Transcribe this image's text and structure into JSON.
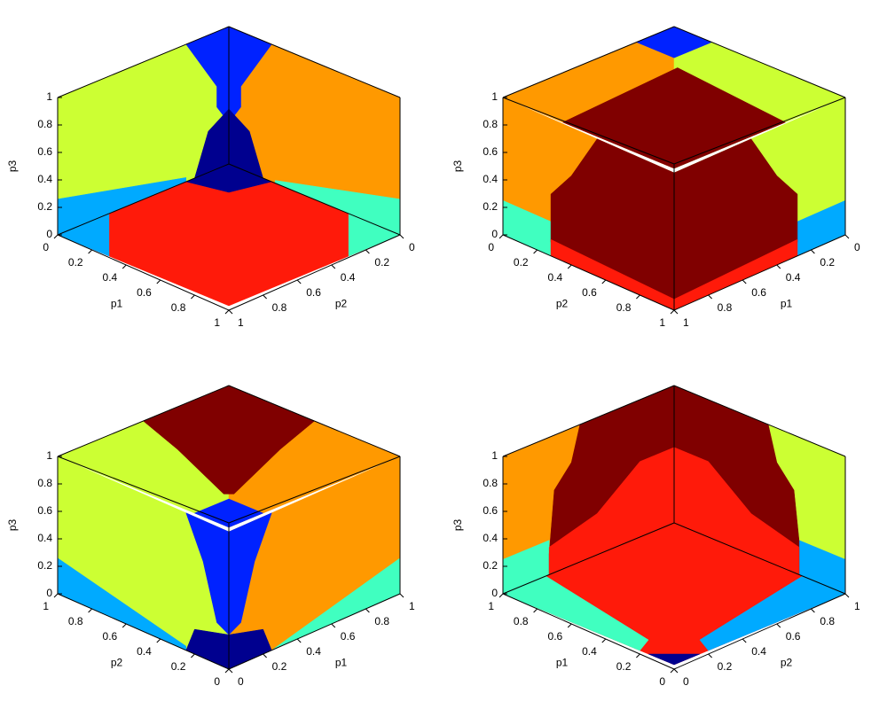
{
  "chart_data": [
    {
      "type": "cube",
      "view": "inside",
      "vertical_axis": {
        "label": "p3",
        "lim": [
          0,
          1
        ],
        "ticks": [
          0,
          0.2,
          0.4,
          0.6,
          0.8,
          1
        ]
      },
      "left_axis": {
        "label": "p1",
        "lim": [
          0,
          1
        ],
        "ticks": [
          0,
          0.2,
          0.4,
          0.6,
          0.8,
          1
        ]
      },
      "right_axis": {
        "label": "p2",
        "lim": [
          0,
          1
        ],
        "ticks": [
          0,
          0.2,
          0.4,
          0.6,
          0.8,
          1
        ]
      }
    },
    {
      "type": "cube",
      "view": "outside",
      "vertical_axis": {
        "label": "p3",
        "lim": [
          0,
          1
        ],
        "ticks": [
          0,
          0.2,
          0.4,
          0.6,
          0.8,
          1
        ]
      },
      "left_axis": {
        "label": "p2",
        "lim": [
          0,
          1
        ],
        "ticks": [
          0,
          0.2,
          0.4,
          0.6,
          0.8,
          1
        ]
      },
      "right_axis": {
        "label": "p1",
        "lim": [
          0,
          1
        ],
        "ticks": [
          0,
          0.2,
          0.4,
          0.6,
          0.8,
          1
        ]
      }
    },
    {
      "type": "cube",
      "view": "outside",
      "vertical_axis": {
        "label": "p3",
        "lim": [
          0,
          1
        ],
        "ticks": [
          0,
          0.2,
          0.4,
          0.6,
          0.8,
          1
        ]
      },
      "left_axis": {
        "label": "p2",
        "lim": [
          1,
          0
        ],
        "ticks": [
          0,
          0.2,
          0.4,
          0.6,
          0.8,
          1
        ]
      },
      "right_axis": {
        "label": "p1",
        "lim": [
          1,
          0
        ],
        "ticks": [
          0,
          0.2,
          0.4,
          0.6,
          0.8,
          1
        ]
      }
    },
    {
      "type": "cube",
      "view": "inside",
      "vertical_axis": {
        "label": "p3",
        "lim": [
          0,
          1
        ],
        "ticks": [
          0,
          0.2,
          0.4,
          0.6,
          0.8,
          1
        ]
      },
      "left_axis": {
        "label": "p1",
        "lim": [
          1,
          0
        ],
        "ticks": [
          0,
          0.2,
          0.4,
          0.6,
          0.8,
          1
        ]
      },
      "right_axis": {
        "label": "p2",
        "lim": [
          1,
          0
        ],
        "ticks": [
          0,
          0.2,
          0.4,
          0.6,
          0.8,
          1
        ]
      }
    }
  ]
}
